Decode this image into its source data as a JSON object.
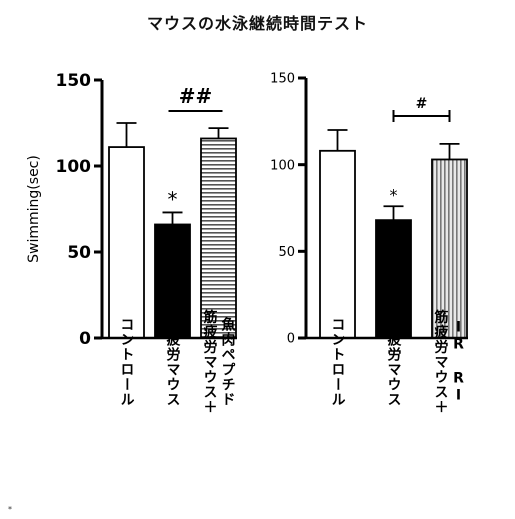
{
  "title": "マウスの水泳継続時間テスト",
  "footnote": "*",
  "chart_data": [
    {
      "type": "bar",
      "ylabel": "Swimming(sec)",
      "ylim": [
        0,
        150
      ],
      "yticks": [
        "0",
        "50",
        "100",
        "150"
      ],
      "categories": [
        "コントロール",
        "筋疲労マウス",
        "筋疲労マウス＋魚肉ペプチド"
      ],
      "category_columns": [
        [
          "コントロール"
        ],
        [
          "筋疲労マウス"
        ],
        [
          "筋疲労マウス＋",
          "魚肉ペプチド"
        ]
      ],
      "values": [
        111,
        66,
        116
      ],
      "errors": [
        14,
        7,
        6
      ],
      "styles": [
        "white",
        "black",
        "hstripe"
      ],
      "marks": [
        "",
        "*",
        ""
      ],
      "bracket": {
        "from": 1,
        "to": 2,
        "label": "##"
      }
    },
    {
      "type": "bar",
      "ylabel": "",
      "ylim": [
        0,
        150
      ],
      "yticks": [
        "0",
        "50",
        "100",
        "150"
      ],
      "categories": [
        "コントロール",
        "筋疲労マウス",
        "筋疲労マウス＋IRRI"
      ],
      "category_columns": [
        [
          "コントロール"
        ],
        [
          "筋疲労マウス"
        ],
        [
          "筋疲労マウス＋",
          "IR RI"
        ]
      ],
      "values": [
        108,
        68,
        103
      ],
      "errors": [
        12,
        8,
        9
      ],
      "styles": [
        "white",
        "black",
        "vstripe"
      ],
      "marks": [
        "",
        "*",
        ""
      ],
      "bracket": {
        "from": 1,
        "to": 2,
        "label": "#"
      }
    }
  ],
  "colors": {
    "bar_fill": "#000000",
    "stripe": "#555555",
    "axis": "#000000"
  }
}
